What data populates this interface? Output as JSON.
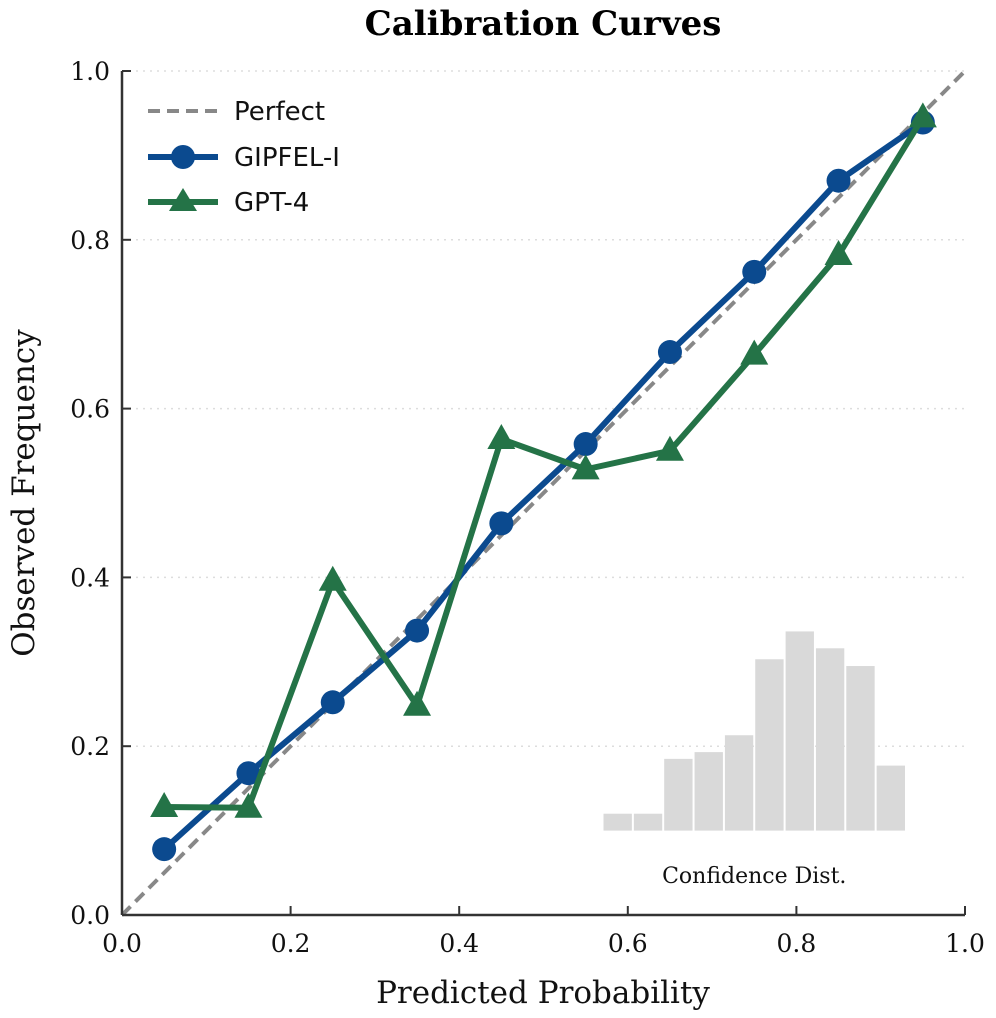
{
  "chart_data": {
    "type": "line",
    "title": "Calibration Curves",
    "xlabel": "Predicted Probability",
    "ylabel": "Observed Frequency",
    "xlim": [
      0.0,
      1.0
    ],
    "ylim": [
      0.0,
      1.0
    ],
    "xticks": [
      "0.0",
      "0.2",
      "0.4",
      "0.6",
      "0.8",
      "1.0"
    ],
    "yticks": [
      "0.0",
      "0.2",
      "0.4",
      "0.6",
      "0.8",
      "1.0"
    ],
    "grid": "horizontal dotted",
    "legend_position": "top-left",
    "reference_line": {
      "name": "Perfect",
      "x": [
        0.0,
        1.0
      ],
      "y": [
        0.0,
        1.0
      ],
      "color": "#888888",
      "style": "dashed"
    },
    "series": [
      {
        "name": "GIPFEL-I",
        "marker": "circle",
        "color": "#0b4a8f",
        "x": [
          0.05,
          0.15,
          0.25,
          0.35,
          0.45,
          0.55,
          0.65,
          0.75,
          0.85,
          0.95
        ],
        "y": [
          0.078,
          0.168,
          0.252,
          0.337,
          0.464,
          0.558,
          0.667,
          0.762,
          0.87,
          0.939
        ]
      },
      {
        "name": "GPT-4",
        "marker": "triangle",
        "color": "#247347",
        "x": [
          0.05,
          0.15,
          0.25,
          0.35,
          0.45,
          0.55,
          0.65,
          0.75,
          0.85,
          0.95
        ],
        "y": [
          0.128,
          0.127,
          0.396,
          0.248,
          0.564,
          0.528,
          0.55,
          0.664,
          0.782,
          0.945
        ]
      }
    ],
    "inset_histogram": {
      "label": "Confidence Dist.",
      "color": "#d9d9d9",
      "x_start": 0.57,
      "bin_width": 0.036,
      "values": [
        0.02,
        0.02,
        0.085,
        0.093,
        0.113,
        0.203,
        0.236,
        0.216,
        0.195,
        0.077
      ]
    }
  }
}
